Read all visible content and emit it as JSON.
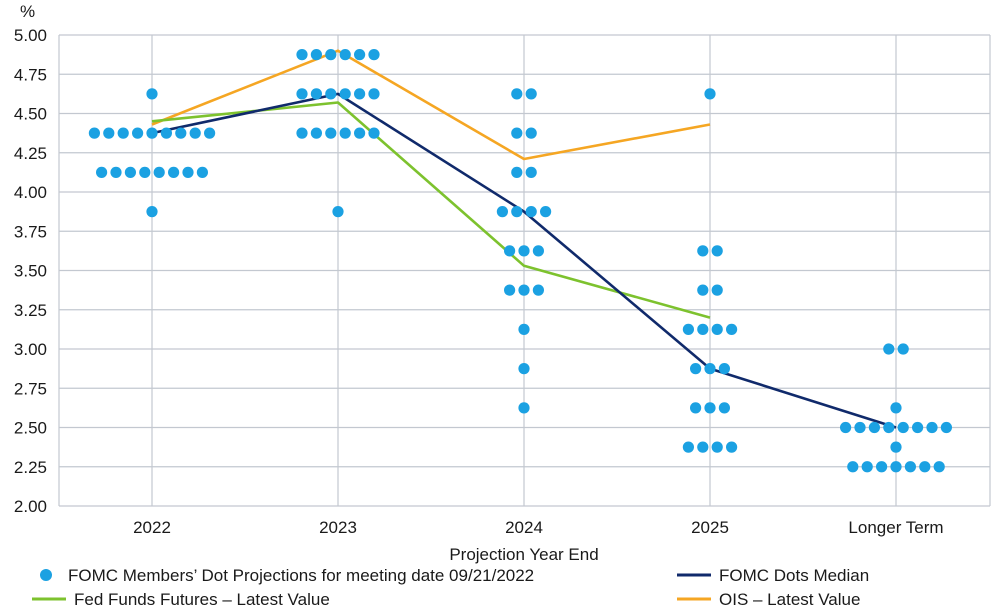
{
  "chart_data": {
    "type": "scatter",
    "ylabel": "%",
    "xlabel": "Projection Year End",
    "categories": [
      "2022",
      "2023",
      "2024",
      "2025",
      "Longer Term"
    ],
    "ylim": [
      2.0,
      5.0
    ],
    "yticks": [
      "5.00",
      "4.75",
      "4.50",
      "4.25",
      "4.00",
      "3.75",
      "3.50",
      "3.25",
      "3.00",
      "2.75",
      "2.50",
      "2.25",
      "2.00"
    ],
    "grid": true,
    "legend_position": "bottom",
    "dots": {
      "name": "FOMC Members’ Dot Projections for meeting date 09/21/2022",
      "color": "#1ba1e2",
      "values": [
        {
          "category": "2022",
          "level": 4.625,
          "count": 1
        },
        {
          "category": "2022",
          "level": 4.375,
          "count": 9
        },
        {
          "category": "2022",
          "level": 4.125,
          "count": 8
        },
        {
          "category": "2022",
          "level": 3.875,
          "count": 1
        },
        {
          "category": "2023",
          "level": 4.875,
          "count": 6
        },
        {
          "category": "2023",
          "level": 4.625,
          "count": 6
        },
        {
          "category": "2023",
          "level": 4.375,
          "count": 6
        },
        {
          "category": "2023",
          "level": 3.875,
          "count": 1
        },
        {
          "category": "2024",
          "level": 4.625,
          "count": 2
        },
        {
          "category": "2024",
          "level": 4.375,
          "count": 2
        },
        {
          "category": "2024",
          "level": 4.125,
          "count": 2
        },
        {
          "category": "2024",
          "level": 3.875,
          "count": 4
        },
        {
          "category": "2024",
          "level": 3.625,
          "count": 3
        },
        {
          "category": "2024",
          "level": 3.375,
          "count": 3
        },
        {
          "category": "2024",
          "level": 3.125,
          "count": 1
        },
        {
          "category": "2024",
          "level": 2.875,
          "count": 1
        },
        {
          "category": "2024",
          "level": 2.625,
          "count": 1
        },
        {
          "category": "2025",
          "level": 4.625,
          "count": 1
        },
        {
          "category": "2025",
          "level": 3.625,
          "count": 2
        },
        {
          "category": "2025",
          "level": 3.375,
          "count": 2
        },
        {
          "category": "2025",
          "level": 3.125,
          "count": 4
        },
        {
          "category": "2025",
          "level": 2.875,
          "count": 3
        },
        {
          "category": "2025",
          "level": 2.625,
          "count": 3
        },
        {
          "category": "2025",
          "level": 2.375,
          "count": 4
        },
        {
          "category": "Longer Term",
          "level": 3.0,
          "count": 2
        },
        {
          "category": "Longer Term",
          "level": 2.625,
          "count": 1
        },
        {
          "category": "Longer Term",
          "level": 2.5,
          "count": 8
        },
        {
          "category": "Longer Term",
          "level": 2.375,
          "count": 1
        },
        {
          "category": "Longer Term",
          "level": 2.25,
          "count": 7
        }
      ]
    },
    "series": [
      {
        "name": "FOMC Dots Median",
        "color": "#102a6b",
        "x": [
          "2022",
          "2023",
          "2024",
          "2025",
          "Longer Term"
        ],
        "values": [
          4.375,
          4.625,
          3.875,
          2.875,
          2.5
        ]
      },
      {
        "name": "Fed Funds Futures – Latest Value",
        "color": "#7dc22e",
        "x": [
          "2022",
          "2023",
          "2024",
          "2025"
        ],
        "values": [
          4.45,
          4.57,
          3.53,
          3.2
        ]
      },
      {
        "name": "OIS – Latest Value",
        "color": "#f5a623",
        "x": [
          "2022",
          "2023",
          "2024",
          "2025"
        ],
        "values": [
          4.43,
          4.9,
          4.21,
          4.43
        ]
      }
    ],
    "legend": [
      "FOMC Members’ Dot Projections for meeting date 09/21/2022",
      "FOMC Dots Median",
      "Fed Funds Futures – Latest Value",
      "OIS – Latest Value"
    ]
  }
}
